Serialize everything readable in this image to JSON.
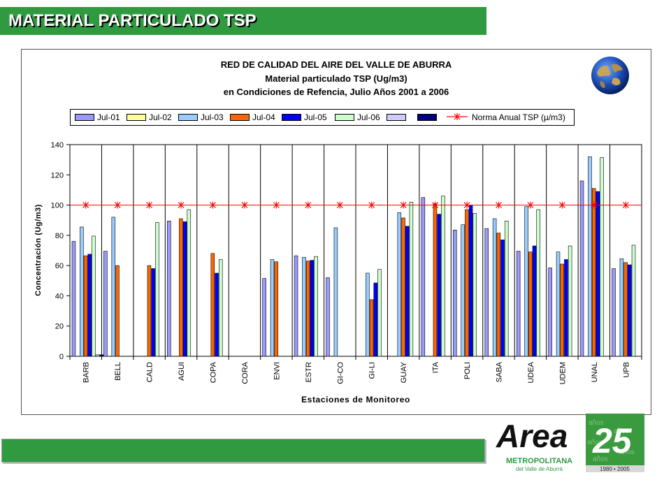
{
  "header": {
    "title": "MATERIAL PARTICULADO TSP"
  },
  "chart_frame": {
    "title_line1": "RED DE CALIDAD DEL AIRE DEL VALLE DE ABURRA",
    "title_line2": "Material particulado TSP (Ug/m3)",
    "title_line3": "en Condiciones de Refencia, Julio Años 2001 a 2006"
  },
  "logo": {
    "brand": "Area",
    "subtitle1": "METROPOLITANA",
    "subtitle2": "del Valle de Aburrá",
    "anniversary": "25",
    "years": "1980 • 2005",
    "pattern_word": "años"
  },
  "chart_data": {
    "type": "bar",
    "xlabel": "Estaciones de Monitoreo",
    "ylabel": "Concentración (Ug/m3)",
    "ylim": [
      0,
      140
    ],
    "yticks": [
      0,
      20,
      40,
      60,
      80,
      100,
      120,
      140
    ],
    "grid": false,
    "legend_position": "top",
    "categories": [
      "BARB",
      "BELL",
      "CALD",
      "AGUI",
      "COPA",
      "CORA",
      "ENVI",
      "ESTR",
      "GI-CO",
      "GI-LI",
      "GUAY",
      "ITA",
      "POLI",
      "SABA",
      "UDEA",
      "UDEM",
      "UNAL",
      "UPB"
    ],
    "series": [
      {
        "name": "Jul-01",
        "color": "#9999ff",
        "values": [
          76,
          69.5,
          null,
          89.5,
          null,
          null,
          51.5,
          66.5,
          52,
          null,
          null,
          105,
          83.5,
          84.5,
          69.5,
          58.5,
          116,
          58
        ]
      },
      {
        "name": "Jul-02",
        "color": "#ffff99",
        "values": [
          null,
          null,
          null,
          null,
          null,
          null,
          null,
          null,
          null,
          null,
          null,
          null,
          null,
          null,
          null,
          null,
          null,
          null
        ]
      },
      {
        "name": "Jul-03",
        "color": "#99ccff",
        "values": [
          85.5,
          92,
          null,
          null,
          null,
          null,
          64,
          65.5,
          85,
          55,
          95,
          null,
          87,
          91,
          99,
          69,
          132,
          64.5
        ]
      },
      {
        "name": "Jul-04",
        "color": "#ff6600",
        "values": [
          66.5,
          60,
          60,
          91,
          68,
          null,
          62.5,
          63,
          null,
          37.5,
          91.5,
          101,
          97,
          81.5,
          69,
          61,
          111,
          62
        ]
      },
      {
        "name": "Jul-05",
        "color": "#0000ff",
        "values": [
          67.5,
          null,
          58,
          89,
          55,
          null,
          null,
          63.5,
          null,
          48.5,
          86,
          94,
          100,
          77,
          73,
          64,
          109,
          60.5
        ]
      },
      {
        "name": "Jul-06",
        "color": "#ccffcc",
        "values": [
          79.5,
          null,
          88.5,
          97,
          64,
          null,
          null,
          66,
          null,
          57.5,
          102,
          106,
          94.5,
          89.5,
          97,
          73,
          131.5,
          73.5
        ]
      },
      {
        "name": "",
        "color": "#ccccff",
        "values": [
          1,
          null,
          null,
          null,
          null,
          null,
          null,
          null,
          null,
          null,
          null,
          null,
          null,
          null,
          null,
          null,
          null,
          null
        ]
      },
      {
        "name": "",
        "color": "#000080",
        "values": [
          1,
          null,
          null,
          null,
          null,
          null,
          null,
          null,
          null,
          null,
          null,
          null,
          null,
          null,
          null,
          null,
          null,
          null
        ]
      }
    ],
    "reference_line": {
      "name": "Norma Anual TSP (µ/m3)",
      "value": 100,
      "color": "#ff0000"
    }
  }
}
